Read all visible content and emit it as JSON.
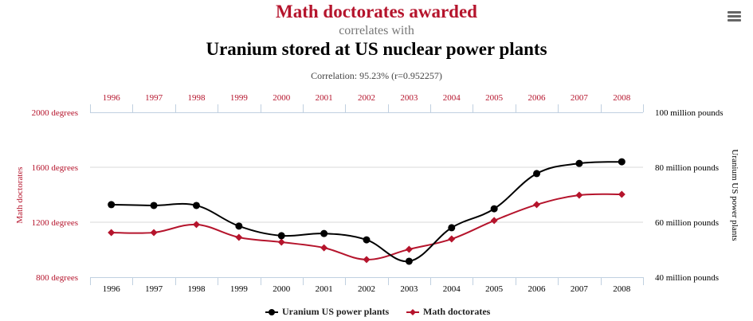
{
  "header": {
    "title": "Math doctorates awarded",
    "subtitle": "correlates with",
    "title2": "Uranium stored at US nuclear power plants",
    "correlation": "Correlation: 95.23% (r=0.952257)",
    "menu_icon": "hamburger-menu-icon"
  },
  "colors": {
    "red": "#B5142C",
    "black": "#000000",
    "grid": "#D8D8D8",
    "axis": "#C0D0E0"
  },
  "chart_data": {
    "type": "line",
    "title": "Math doctorates awarded correlates with Uranium stored at US nuclear power plants",
    "categories": [
      "1996",
      "1997",
      "1998",
      "1999",
      "2000",
      "2001",
      "2002",
      "2003",
      "2004",
      "2005",
      "2006",
      "2007",
      "2008"
    ],
    "left_axis": {
      "label": "Math doctorates",
      "ylim": [
        800,
        2000
      ],
      "ticks": [
        "800 degrees",
        "1200 degrees",
        "1600 degrees",
        "2000 degrees"
      ],
      "tick_values": [
        800,
        1200,
        1600,
        2000
      ]
    },
    "right_axis": {
      "label": "Uranium US power plants",
      "ylim": [
        40,
        100
      ],
      "ticks": [
        "40 million pounds",
        "60 million pounds",
        "80 million pounds",
        "100 million pounds"
      ],
      "tick_values": [
        40,
        60,
        80,
        100
      ]
    },
    "grid": true,
    "legend_position": "bottom",
    "series": [
      {
        "name": "Uranium US power plants",
        "axis": "right",
        "color": "#000000",
        "marker": "circle",
        "values": [
          66.4,
          66.1,
          66.1,
          58.6,
          55.1,
          55.9,
          53.6,
          45.8,
          58.0,
          64.9,
          77.7,
          81.4,
          82.0
        ]
      },
      {
        "name": "Math doctorates",
        "axis": "left",
        "color": "#B5142C",
        "marker": "diamond",
        "values": [
          1125,
          1125,
          1183,
          1090,
          1055,
          1014,
          928,
          1003,
          1078,
          1212,
          1328,
          1397,
          1403
        ]
      }
    ]
  }
}
